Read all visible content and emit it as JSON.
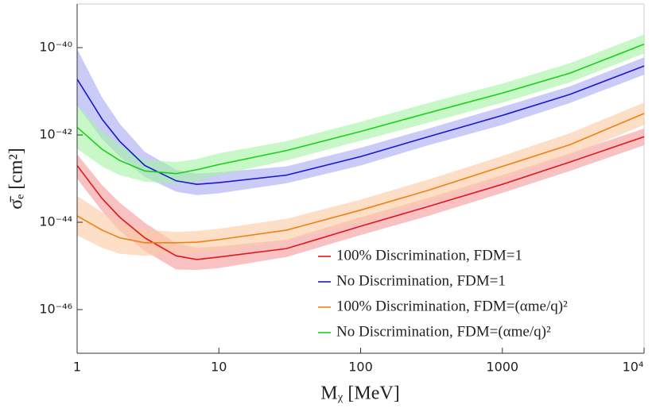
{
  "chart_data": {
    "type": "line",
    "log_x": true,
    "log_y": true,
    "x_label": "Mᵪ [MeV]",
    "y_label": "σ̄ₑ [cm²]",
    "xlim": [
      1,
      10000
    ],
    "ylim": [
      1e-47,
      1e-39
    ],
    "xticks": [
      1,
      10,
      100,
      1000,
      {
        "value": 10000,
        "label": "10⁴"
      }
    ],
    "yticks": [
      {
        "value": 1e-46,
        "label": "10⁻⁴⁶"
      },
      {
        "value": 1e-44,
        "label": "10⁻⁴⁴"
      },
      {
        "value": 1e-42,
        "label": "10⁻⁴²"
      },
      {
        "value": 1e-40,
        "label": "10⁻⁴⁰"
      }
    ],
    "legend": "lower right",
    "x": [
      1,
      1.5,
      2,
      3,
      5,
      7,
      10,
      30,
      100,
      300,
      1000,
      3000,
      10000
    ],
    "series": [
      {
        "name": "100% Discrimination, FDM=1",
        "color": "#e01818",
        "band_color": "#f49a9a",
        "values": [
          2e-43,
          3.5e-44,
          1.3e-44,
          4.4e-45,
          1.7e-45,
          1.4e-45,
          1.6e-45,
          2.5e-45,
          8.1e-45,
          2.3e-44,
          7.4e-44,
          2.4e-43,
          9.1e-43
        ],
        "upper": [
          3.6e-43,
          7.1e-44,
          2.8e-44,
          9.8e-45,
          3.3e-45,
          2.6e-45,
          2.8e-45,
          4e-45,
          1.3e-44,
          3.6e-44,
          1.2e-43,
          3.8e-43,
          1.4e-42
        ],
        "lower": [
          1e-43,
          1.8e-44,
          6.3e-45,
          2.2e-45,
          8.3e-46,
          8.1e-46,
          8.9e-46,
          1.6e-45,
          5.1e-45,
          1.4e-44,
          4.7e-44,
          1.5e-43,
          5.8e-43
        ]
      },
      {
        "name": "No Discrimination, FDM=1",
        "color": "#1818d0",
        "band_color": "#a8a8f2",
        "values": [
          1.9e-41,
          2.3e-42,
          7.1e-43,
          2e-43,
          8.9e-44,
          7.4e-44,
          8.1e-44,
          1.2e-43,
          3.2e-43,
          9.1e-43,
          2.8e-42,
          8.5e-42,
          3.8e-41
        ],
        "upper": [
          9.3e-41,
          7.2e-42,
          1.8e-42,
          4.1e-43,
          1.6e-43,
          1.3e-43,
          1.4e-43,
          1.9e-43,
          5.1e-43,
          1.4e-42,
          4.4e-42,
          1.3e-41,
          6e-41
        ],
        "lower": [
          4.7e-42,
          8.1e-43,
          3.2e-43,
          1.1e-43,
          5e-44,
          4.2e-44,
          4.6e-44,
          7.8e-44,
          2e-43,
          5.8e-43,
          1.7e-42,
          5.4e-42,
          2.4e-41
        ]
      },
      {
        "name": "100% Discrimination, FDM=(αme/q)²",
        "color": "#f08010",
        "band_color": "#fcc9a4",
        "values": [
          1.4e-44,
          6.6e-45,
          4.4e-45,
          3.4e-45,
          3.4e-45,
          3.5e-45,
          4e-45,
          6.6e-45,
          1.9e-44,
          5.4e-44,
          1.9e-43,
          6e-43,
          3.1e-42
        ],
        "upper": [
          4e-44,
          1.7e-44,
          9.8e-45,
          6.8e-45,
          6e-45,
          6.3e-45,
          7.1e-45,
          1.2e-44,
          3.3e-44,
          9.5e-44,
          3.3e-43,
          1.1e-42,
          5.5e-42
        ],
        "lower": [
          5e-45,
          2.6e-45,
          1.9e-45,
          1.7e-45,
          1.9e-45,
          2e-45,
          2.2e-45,
          3.7e-45,
          1e-44,
          3e-44,
          1e-43,
          3.4e-43,
          1.7e-42
        ]
      },
      {
        "name": "No Discrimination, FDM=(αme/q)²",
        "color": "#18d018",
        "band_color": "#a4f2a4",
        "values": [
          1.5e-42,
          4.7e-43,
          2.6e-43,
          1.5e-43,
          1.3e-43,
          1.6e-43,
          2.1e-43,
          4.4e-43,
          1.2e-42,
          3.2e-42,
          9.1e-42,
          2.6e-41,
          1.2e-40
        ],
        "upper": [
          4.8e-42,
          1.2e-42,
          5.9e-43,
          2.7e-43,
          2.4e-43,
          2.8e-43,
          3.8e-43,
          7.2e-43,
          2e-42,
          5.4e-42,
          1.5e-41,
          4.4e-41,
          2e-40
        ],
        "lower": [
          4.8e-43,
          1.9e-43,
          1.2e-43,
          8.5e-44,
          7.6e-44,
          8.9e-44,
          1.2e-43,
          2.6e-43,
          7.4e-43,
          1.9e-42,
          5.5e-42,
          1.6e-41,
          7.4e-41
        ]
      }
    ]
  }
}
